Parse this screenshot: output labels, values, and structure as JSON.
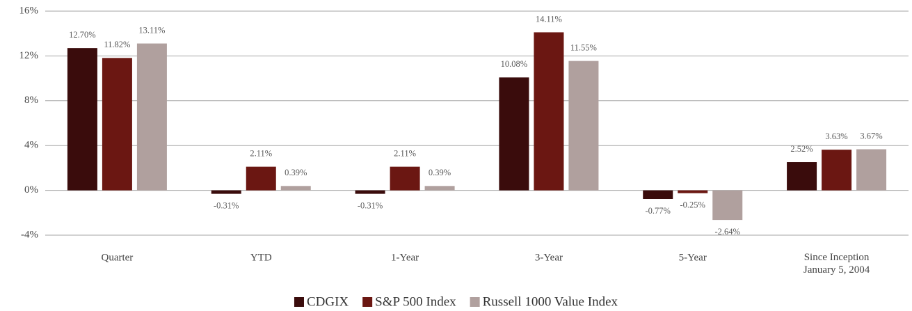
{
  "chart_data": {
    "type": "bar",
    "categories": [
      "Quarter",
      "YTD",
      "1-Year",
      "3-Year",
      "5-Year",
      "Since Inception\nJanuary 5, 2004"
    ],
    "series": [
      {
        "name": "CDGIX",
        "color": "#3a0c0c",
        "values": [
          12.7,
          -0.31,
          -0.31,
          10.08,
          -0.77,
          2.52
        ],
        "value_labels": [
          "12.70%",
          "-0.31%",
          "-0.31%",
          "10.08%",
          "-0.77%",
          "2.52%"
        ]
      },
      {
        "name": "S&P 500 Index",
        "color": "#6b1712",
        "values": [
          11.82,
          2.11,
          2.11,
          14.11,
          -0.25,
          3.63
        ],
        "value_labels": [
          "11.82%",
          "2.11%",
          "2.11%",
          "14.11%",
          "-0.25%",
          "3.63%"
        ]
      },
      {
        "name": "Russell 1000 Value Index",
        "color": "#b0a09e",
        "values": [
          13.11,
          0.39,
          0.39,
          11.55,
          -2.64,
          3.67
        ],
        "value_labels": [
          "13.11%",
          "0.39%",
          "0.39%",
          "11.55%",
          "-2.64%",
          "3.67%"
        ]
      }
    ],
    "ylim": [
      -4,
      16
    ],
    "yticks": [
      {
        "value": -4,
        "label": "-4%"
      },
      {
        "value": 0,
        "label": "0%"
      },
      {
        "value": 4,
        "label": "4%"
      },
      {
        "value": 8,
        "label": "8%"
      },
      {
        "value": 12,
        "label": "12%"
      },
      {
        "value": 16,
        "label": "16%"
      }
    ],
    "grid": true
  }
}
